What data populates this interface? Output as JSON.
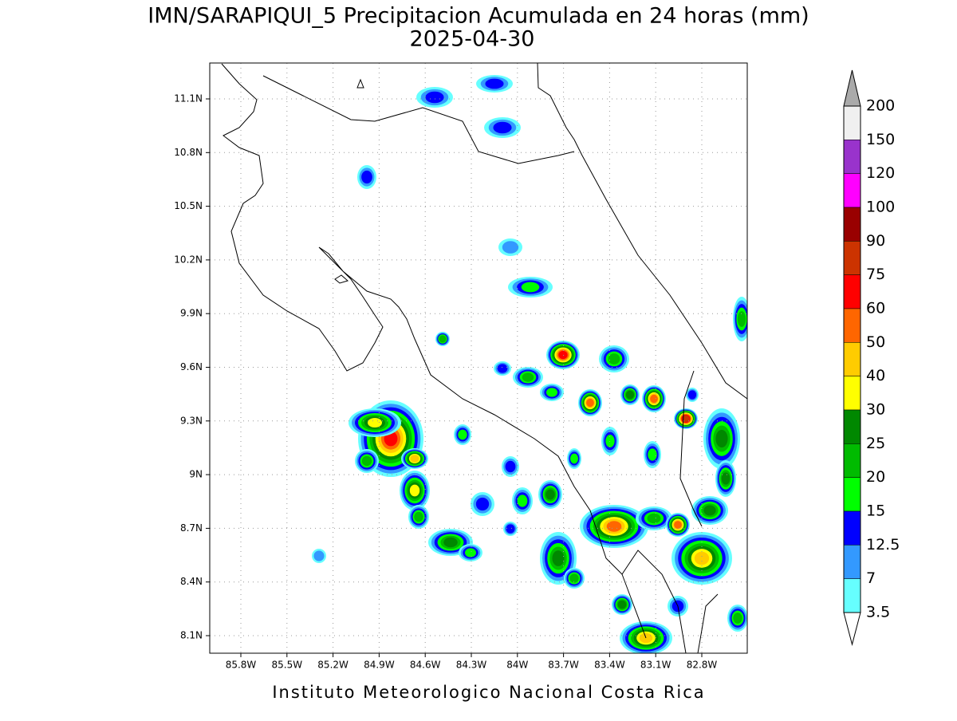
{
  "title": "IMN/SARAPIQUI_5 Precipitacion Acumulada en 24 horas (mm)",
  "date": "2025-04-30",
  "lon_labels": [
    "85.8W",
    "85.5W",
    "85.2W",
    "84.9W",
    "84.6W",
    "84.3W",
    "84W",
    "83.7W",
    "83.4W",
    "83.1W",
    "82.8W"
  ],
  "lat_labels": [
    "11.1N",
    "10.8N",
    "10.5N",
    "10.2N",
    "9.9N",
    "9.6N",
    "9.3N",
    "9N",
    "8.7N",
    "8.4N",
    "8.1N"
  ],
  "colorbar": {
    "labels": [
      "200",
      "150",
      "120",
      "100",
      "90",
      "75",
      "60",
      "50",
      "40",
      "30",
      "25",
      "20",
      "15",
      "12.5",
      "7",
      "3.5"
    ],
    "colors": [
      "#f0f0f0",
      "#9933cc",
      "#ff00ff",
      "#990000",
      "#cc3300",
      "#ff0000",
      "#ff6600",
      "#ffcc00",
      "#ffff00",
      "#008800",
      "#00bb00",
      "#00ff00",
      "#0000ff",
      "#3399ff",
      "#66ffff"
    ],
    "over_color": "#aaaaaa",
    "under_color": "#ffffff"
  },
  "footer": "Instituto Meteorologico Nacional Costa Rica"
}
